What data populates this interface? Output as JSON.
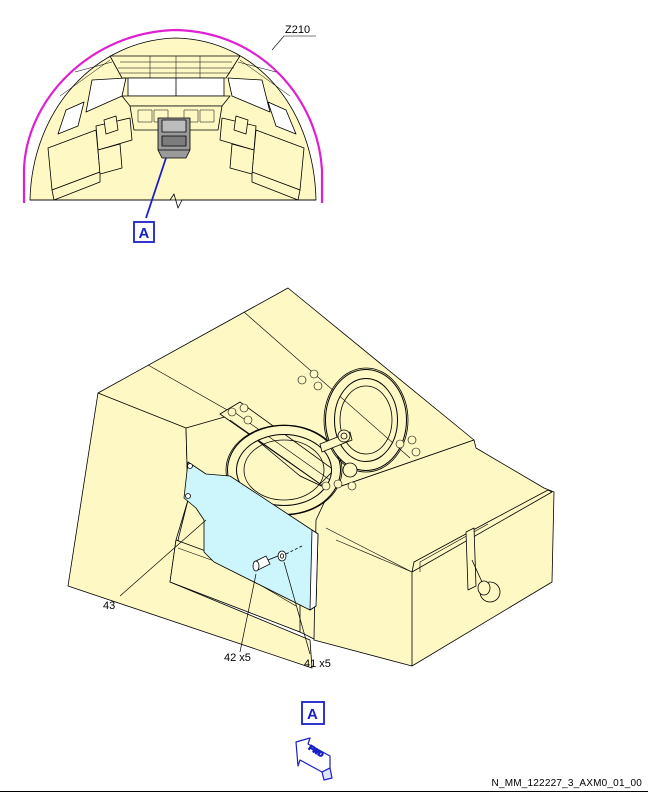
{
  "overview": {
    "zone_label": "Z210",
    "view_callout": "A"
  },
  "detail": {
    "view_label": "A",
    "items": [
      {
        "id": "43",
        "label": "43"
      },
      {
        "id": "42",
        "label": "42 x5"
      },
      {
        "id": "41",
        "label": "41 x5"
      }
    ]
  },
  "orientation": {
    "label": "FWD"
  },
  "figure_id": "N_MM_122227_3_AXM0_01_00",
  "colors": {
    "structure_fill": "#fdf8c4",
    "panel_fill": "#ccf6fb",
    "zone_outline": "#e020d0",
    "callout_blue": "#1a20c8",
    "pedestal_gray": "#9a9a9a"
  }
}
